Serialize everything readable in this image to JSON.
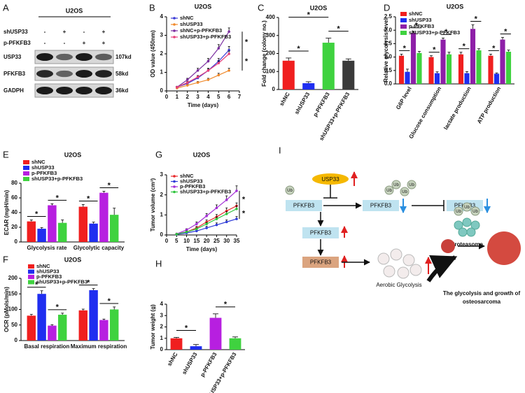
{
  "blot": {
    "panel": "A",
    "title": "U2OS",
    "conditions": [
      {
        "name": "shUSP33",
        "signs": [
          "-",
          "+",
          "-",
          "+"
        ]
      },
      {
        "name": "p-PFKFB3",
        "signs": [
          "-",
          "-",
          "+",
          "+"
        ]
      }
    ],
    "bands": [
      {
        "name": "USP33",
        "size": "107kd"
      },
      {
        "name": "PFKFB3",
        "size": "58kd"
      },
      {
        "name": "GADPH",
        "size": "36kd"
      }
    ]
  },
  "chart_data": [
    {
      "panel": "B",
      "type": "line",
      "title": "U2OS",
      "xlabel": "Time (days)",
      "ylabel": "OD value (450nm)",
      "x": [
        1,
        2,
        3,
        4,
        5,
        6
      ],
      "xlim": [
        0,
        7
      ],
      "xticks": [
        0,
        1,
        2,
        3,
        4,
        5,
        6,
        7
      ],
      "ylim": [
        0,
        4
      ],
      "yticks": [
        0,
        1,
        2,
        3,
        4
      ],
      "series": [
        {
          "name": "shNC",
          "color": "#3b3bd6",
          "values": [
            0.2,
            0.4,
            0.7,
            1.1,
            1.6,
            2.2
          ],
          "errors": [
            0.05,
            0.06,
            0.08,
            0.12,
            0.15,
            0.2
          ]
        },
        {
          "name": "shUSP33",
          "color": "#f08a2c",
          "values": [
            0.15,
            0.3,
            0.45,
            0.6,
            0.85,
            1.1
          ],
          "errors": [
            0.04,
            0.05,
            0.06,
            0.08,
            0.1,
            0.12
          ]
        },
        {
          "name": "shNC+p-PFKFB3",
          "color": "#7b2fa0",
          "values": [
            0.2,
            0.6,
            1.1,
            1.6,
            2.3,
            3.2
          ],
          "errors": [
            0.05,
            0.08,
            0.12,
            0.15,
            0.2,
            0.2
          ]
        },
        {
          "name": "shUSP33+p-PFKFB3",
          "color": "#e8407a",
          "values": [
            0.2,
            0.45,
            0.75,
            1.1,
            1.5,
            2.0
          ],
          "errors": [
            0.05,
            0.06,
            0.08,
            0.1,
            0.12,
            0.15
          ]
        }
      ],
      "annotations": [
        "*",
        "*"
      ]
    },
    {
      "panel": "C",
      "type": "bar",
      "title": "U2OS",
      "ylabel": "Fold change (colony no.)",
      "categories": [
        "shNC",
        "shUSP33",
        "p-PFKFB3",
        "shUSP33+p-PFKFB3"
      ],
      "values": [
        160,
        35,
        260,
        160
      ],
      "errors": [
        15,
        8,
        25,
        10
      ],
      "colors": [
        "#f01f1f",
        "#1f2ef0",
        "#3fd23f",
        "#3a3a3a"
      ],
      "ylim": [
        0,
        400
      ],
      "yticks": [
        0,
        100,
        200,
        300,
        400
      ],
      "annotations": [
        "*",
        "*",
        "*"
      ]
    },
    {
      "panel": "D",
      "type": "grouped_bar",
      "title": "U2OS",
      "ylabel": "Relative glycolysis level",
      "categories": [
        "G6P level",
        "Glucose consumption",
        "lactate production",
        "ATP production"
      ],
      "ylim": [
        0,
        2.5
      ],
      "yticks": [
        {
          "value": 0,
          "label": "0.0"
        },
        0.5,
        {
          "value": 1,
          "label": "1.0"
        },
        1.5,
        {
          "value": 2,
          "label": "2.0"
        },
        2.5
      ],
      "series": [
        {
          "name": "shNC",
          "color": "#f01f1f",
          "values": [
            1.05,
            1.0,
            1.1,
            1.05
          ],
          "errors": [
            0.06,
            0.05,
            0.08,
            0.06
          ]
        },
        {
          "name": "shUSP33",
          "color": "#1f2ef0",
          "values": [
            0.45,
            0.4,
            0.4,
            0.38
          ],
          "errors": [
            0.1,
            0.05,
            0.06,
            0.03
          ]
        },
        {
          "name": "p-PFKFB3",
          "color": "#8e1fa8",
          "values": [
            1.9,
            1.65,
            2.05,
            1.65
          ],
          "errors": [
            0.06,
            0.06,
            0.15,
            0.08
          ]
        },
        {
          "name": "shUSP33+p-PFKFB3",
          "color": "#3fd23f",
          "values": [
            1.15,
            1.1,
            1.25,
            1.2
          ],
          "errors": [
            0.06,
            0.08,
            0.06,
            0.06
          ]
        }
      ],
      "annotations": [
        "*",
        "*",
        "*",
        "*",
        "*",
        "*",
        "*",
        "*"
      ]
    },
    {
      "panel": "E",
      "type": "grouped_bar",
      "title": "U2OS",
      "ylabel": "ECAR (mpH/min)",
      "categories": [
        "Glycolysis rate",
        "Glycolytic capacity"
      ],
      "ylim": [
        0,
        80
      ],
      "yticks": [
        0,
        20,
        40,
        60,
        80
      ],
      "series": [
        {
          "name": "shNC",
          "color": "#f01f1f",
          "values": [
            28,
            48
          ],
          "errors": [
            2,
            3
          ]
        },
        {
          "name": "shUSP33",
          "color": "#1f2ef0",
          "values": [
            18,
            25
          ],
          "errors": [
            1.5,
            2
          ]
        },
        {
          "name": "p-PFKFB3",
          "color": "#b71fe0",
          "values": [
            50,
            67
          ],
          "errors": [
            2,
            2
          ]
        },
        {
          "name": "shUSP33+p-PFKFB3",
          "color": "#3fd23f",
          "values": [
            26,
            37
          ],
          "errors": [
            4,
            9
          ]
        }
      ],
      "annotations": [
        "*",
        "*",
        "*",
        "*"
      ]
    },
    {
      "panel": "F",
      "type": "grouped_bar",
      "title": "U2OS",
      "ylabel": "OCR (pMols/min)",
      "categories": [
        "Basal respiration",
        "Maximum respiration"
      ],
      "ylim": [
        0,
        200
      ],
      "yticks": [
        0,
        50,
        100,
        150,
        200
      ],
      "series": [
        {
          "name": "shNC",
          "color": "#f01f1f",
          "values": [
            80,
            97
          ],
          "errors": [
            4,
            4
          ]
        },
        {
          "name": "shUSP33",
          "color": "#1f2ef0",
          "values": [
            150,
            162
          ],
          "errors": [
            10,
            5
          ]
        },
        {
          "name": "p-PFKFB3",
          "color": "#b71fe0",
          "values": [
            48,
            66
          ],
          "errors": [
            3,
            3
          ]
        },
        {
          "name": "shUSP33+p-PFKFB3",
          "color": "#3fd23f",
          "values": [
            83,
            100
          ],
          "errors": [
            5,
            8
          ]
        }
      ],
      "annotations": [
        "*",
        "*",
        "*",
        "*"
      ]
    },
    {
      "panel": "G",
      "type": "line",
      "title": "U2OS",
      "xlabel": "Time (days)",
      "ylabel": "Tumor volume (cm³)",
      "x": [
        5,
        10,
        15,
        20,
        25,
        30,
        35
      ],
      "xlim": [
        0,
        35
      ],
      "xticks": [
        0,
        5,
        10,
        15,
        20,
        25,
        30,
        35
      ],
      "ylim": [
        0,
        3
      ],
      "yticks": [
        0,
        1,
        2,
        3
      ],
      "series": [
        {
          "name": "shNC",
          "color": "#e8282a",
          "values": [
            0.05,
            0.15,
            0.35,
            0.65,
            0.9,
            1.2,
            1.45
          ],
          "errors": [
            0.02,
            0.05,
            0.08,
            0.1,
            0.12,
            0.15,
            0.15
          ]
        },
        {
          "name": "shUSP33",
          "color": "#2e3bd8",
          "values": [
            0.03,
            0.1,
            0.2,
            0.35,
            0.5,
            0.65,
            0.8
          ],
          "errors": [
            0.02,
            0.04,
            0.05,
            0.08,
            0.1,
            0.1,
            0.12
          ]
        },
        {
          "name": "p-PFKFB3",
          "color": "#a32ed6",
          "values": [
            0.05,
            0.25,
            0.55,
            0.95,
            1.35,
            1.75,
            2.2
          ],
          "errors": [
            0.03,
            0.06,
            0.1,
            0.12,
            0.15,
            0.2,
            0.25
          ]
        },
        {
          "name": "shUSP33+p-PFKFB3",
          "color": "#2ec43c",
          "values": [
            0.04,
            0.15,
            0.3,
            0.55,
            0.8,
            1.05,
            1.3
          ],
          "errors": [
            0.02,
            0.05,
            0.06,
            0.08,
            0.1,
            0.12,
            0.15
          ]
        }
      ],
      "annotations": [
        "*",
        "*"
      ]
    },
    {
      "panel": "H",
      "type": "bar",
      "ylabel": "Tumor weight (g)",
      "categories": [
        "shNC",
        "shUSP33",
        "p-PFKFB3",
        "shUSP33+p-PFKFB3"
      ],
      "values": [
        1.0,
        0.3,
        2.8,
        1.0
      ],
      "errors": [
        0.08,
        0.15,
        0.35,
        0.12
      ],
      "colors": [
        "#f01f1f",
        "#1f2ef0",
        "#b71fe0",
        "#3fd23f"
      ],
      "ylim": [
        0,
        4
      ],
      "yticks": [
        0,
        1,
        2,
        3,
        4
      ],
      "annotations": [
        "*",
        "*"
      ]
    }
  ],
  "diagram": {
    "panel": "I",
    "usp33": "USP33",
    "boxes": [
      "PFKFB3",
      "PFKFB3",
      "PFKFB3",
      "PFKFB3",
      "PFKFB3"
    ],
    "ub": [
      "Ub",
      "Ub",
      "Ub",
      "Ub",
      "Ub",
      "Ub",
      "Ub",
      "Ub"
    ],
    "proteasome": "Proteasome",
    "aerobic": "Aerobic Glycolysis",
    "outcome": [
      "The glycolysis and growth of",
      "osteosarcoma"
    ]
  }
}
